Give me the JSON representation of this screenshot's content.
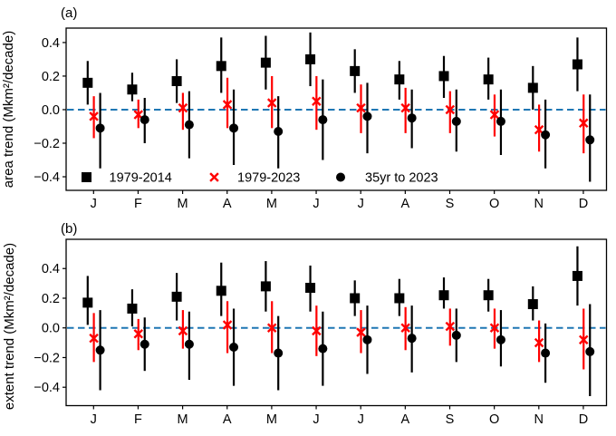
{
  "figure": {
    "background": "#ffffff",
    "text_color": "#000000",
    "zero_line_color": "#1f77b4",
    "accent_red": "#ff0000",
    "accent_black": "#000000"
  },
  "chart_data": [
    {
      "type": "scatter",
      "panel_label": "(a)",
      "ylabel": "area trend (Mkm²/decade)",
      "x_tick_labels": [
        "J",
        "F",
        "M",
        "A",
        "M",
        "J",
        "J",
        "A",
        "S",
        "O",
        "N",
        "D"
      ],
      "yticks": [
        0.4,
        0.2,
        0.0,
        -0.2,
        -0.4
      ],
      "ylim": [
        -0.481,
        0.486
      ],
      "grid": false,
      "zero_line": {
        "y": 0.0,
        "style": "dashed",
        "color": "#1f77b4"
      },
      "legend": {
        "visible": true,
        "position": "lower-left-inside",
        "frame": false,
        "items": [
          "1979-2014",
          "1979-2023",
          "35yr to 2023"
        ]
      },
      "series": [
        {
          "name": "1979-2014",
          "marker": "square",
          "color": "#000000",
          "values": [
            0.16,
            0.12,
            0.17,
            0.26,
            0.28,
            0.3,
            0.23,
            0.18,
            0.2,
            0.18,
            0.13,
            0.27
          ],
          "ci_low": [
            0.03,
            0.05,
            0.04,
            0.1,
            0.12,
            0.14,
            0.1,
            0.06,
            0.07,
            0.06,
            0.0,
            0.11
          ],
          "ci_high": [
            0.29,
            0.22,
            0.3,
            0.43,
            0.44,
            0.46,
            0.36,
            0.29,
            0.32,
            0.31,
            0.26,
            0.43
          ]
        },
        {
          "name": "1979-2023",
          "marker": "x",
          "color": "#ff0000",
          "values": [
            -0.04,
            -0.03,
            0.01,
            0.03,
            0.04,
            0.05,
            0.01,
            0.01,
            0.0,
            -0.03,
            -0.12,
            -0.08
          ],
          "ci_low": [
            -0.17,
            -0.11,
            -0.12,
            -0.11,
            -0.11,
            -0.12,
            -0.14,
            -0.14,
            -0.14,
            -0.16,
            -0.25,
            -0.26
          ],
          "ci_high": [
            0.08,
            0.06,
            0.1,
            0.19,
            0.2,
            0.2,
            0.15,
            0.13,
            0.11,
            0.09,
            0.03,
            0.09
          ]
        },
        {
          "name": "35yr to 2023",
          "marker": "circle",
          "color": "#000000",
          "values": [
            -0.11,
            -0.06,
            -0.09,
            -0.11,
            -0.13,
            -0.06,
            -0.04,
            -0.05,
            -0.07,
            -0.07,
            -0.15,
            -0.18
          ],
          "ci_low": [
            -0.35,
            -0.2,
            -0.29,
            -0.33,
            -0.35,
            -0.3,
            -0.26,
            -0.23,
            -0.25,
            -0.27,
            -0.35,
            -0.43
          ],
          "ci_high": [
            0.1,
            0.07,
            0.11,
            0.12,
            0.08,
            0.18,
            0.16,
            0.12,
            0.12,
            0.12,
            0.06,
            0.09
          ]
        }
      ]
    },
    {
      "type": "scatter",
      "panel_label": "(b)",
      "ylabel": "extent trend (Mkm²/decade)",
      "x_tick_labels": [
        "J",
        "F",
        "M",
        "A",
        "M",
        "J",
        "J",
        "A",
        "S",
        "O",
        "N",
        "D"
      ],
      "yticks": [
        0.4,
        0.2,
        0.0,
        -0.2,
        -0.4
      ],
      "ylim": [
        -0.524,
        0.597
      ],
      "grid": false,
      "zero_line": {
        "y": 0.0,
        "style": "dashed",
        "color": "#1f77b4"
      },
      "legend": {
        "visible": false,
        "items": []
      },
      "series": [
        {
          "name": "1979-2014",
          "marker": "square",
          "color": "#000000",
          "values": [
            0.17,
            0.13,
            0.21,
            0.25,
            0.28,
            0.27,
            0.2,
            0.2,
            0.22,
            0.22,
            0.16,
            0.35
          ],
          "ci_low": [
            0.02,
            0.01,
            0.05,
            0.08,
            0.11,
            0.11,
            0.08,
            0.08,
            0.13,
            0.11,
            0.05,
            0.15
          ],
          "ci_high": [
            0.35,
            0.26,
            0.37,
            0.44,
            0.45,
            0.42,
            0.32,
            0.33,
            0.34,
            0.33,
            0.28,
            0.55
          ]
        },
        {
          "name": "1979-2023",
          "marker": "x",
          "color": "#ff0000",
          "values": [
            -0.07,
            -0.04,
            -0.02,
            0.02,
            0.0,
            -0.02,
            -0.03,
            0.0,
            0.01,
            0.0,
            -0.1,
            -0.08
          ],
          "ci_low": [
            -0.23,
            -0.15,
            -0.14,
            -0.17,
            -0.17,
            -0.19,
            -0.17,
            -0.15,
            -0.12,
            -0.14,
            -0.23,
            -0.28
          ],
          "ci_high": [
            0.1,
            0.06,
            0.12,
            0.18,
            0.18,
            0.15,
            0.12,
            0.14,
            0.13,
            0.13,
            0.05,
            0.13
          ]
        },
        {
          "name": "35yr to 2023",
          "marker": "circle",
          "color": "#000000",
          "values": [
            -0.15,
            -0.11,
            -0.11,
            -0.13,
            -0.17,
            -0.14,
            -0.08,
            -0.07,
            -0.05,
            -0.08,
            -0.17,
            -0.16
          ],
          "ci_low": [
            -0.42,
            -0.29,
            -0.35,
            -0.39,
            -0.42,
            -0.39,
            -0.31,
            -0.3,
            -0.23,
            -0.26,
            -0.37,
            -0.46
          ],
          "ci_high": [
            0.12,
            0.07,
            0.11,
            0.13,
            0.08,
            0.11,
            0.15,
            0.15,
            0.13,
            0.12,
            0.03,
            0.16
          ]
        }
      ]
    }
  ]
}
